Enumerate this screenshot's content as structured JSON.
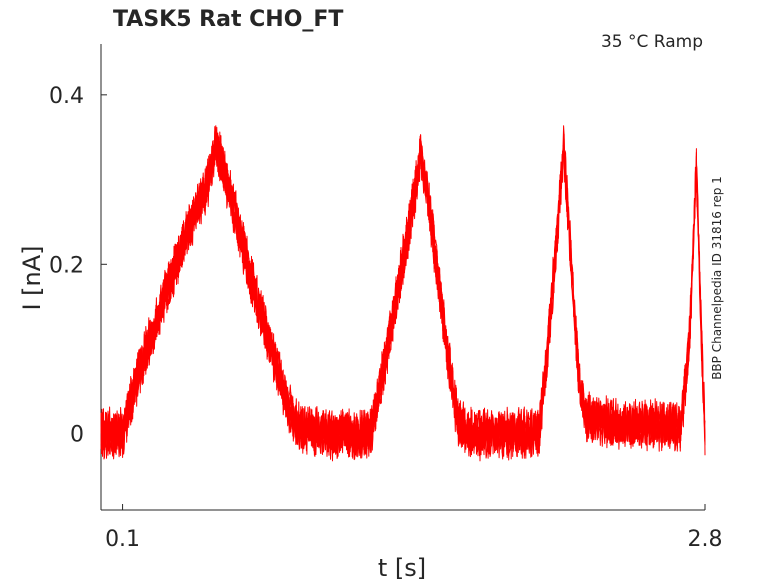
{
  "chart_data": {
    "type": "line",
    "title": "TASK5  Rat  CHO_FT",
    "subtitle": "35 °C  Ramp",
    "side_label": "BBP Channelpedia ID 31816 rep 1",
    "xlabel": "t [s]",
    "ylabel": "I [nA]",
    "xlim": [
      0.0,
      2.8
    ],
    "ylim": [
      -0.09,
      0.46
    ],
    "x_ticks": [
      {
        "value": 0.1,
        "label": "0.1"
      },
      {
        "value": 2.8,
        "label": "2.8"
      }
    ],
    "y_ticks": [
      {
        "value": 0,
        "label": "0"
      },
      {
        "value": 0.2,
        "label": "0.2"
      },
      {
        "value": 0.4,
        "label": "0.4"
      }
    ],
    "grid": false,
    "line_color": "#ff0000",
    "series": [
      {
        "values": [
          [
            0.0,
            0.0
          ],
          [
            0.1,
            0.0
          ],
          [
            0.16,
            0.06
          ],
          [
            0.25,
            0.13
          ],
          [
            0.35,
            0.2
          ],
          [
            0.45,
            0.27
          ],
          [
            0.5,
            0.3
          ],
          [
            0.53,
            0.34
          ],
          [
            0.56,
            0.32
          ],
          [
            0.62,
            0.26
          ],
          [
            0.7,
            0.18
          ],
          [
            0.8,
            0.09
          ],
          [
            0.86,
            0.04
          ],
          [
            0.9,
            0.01
          ],
          [
            1.0,
            0.0
          ],
          [
            1.15,
            0.0
          ],
          [
            1.25,
            0.0
          ],
          [
            1.32,
            0.09
          ],
          [
            1.39,
            0.19
          ],
          [
            1.44,
            0.26
          ],
          [
            1.48,
            0.33
          ],
          [
            1.51,
            0.29
          ],
          [
            1.56,
            0.19
          ],
          [
            1.61,
            0.09
          ],
          [
            1.65,
            0.02
          ],
          [
            1.7,
            0.0
          ],
          [
            1.85,
            0.0
          ],
          [
            2.03,
            0.0
          ],
          [
            2.07,
            0.1
          ],
          [
            2.11,
            0.22
          ],
          [
            2.145,
            0.34
          ],
          [
            2.18,
            0.2
          ],
          [
            2.22,
            0.05
          ],
          [
            2.25,
            0.02
          ],
          [
            2.4,
            0.01
          ],
          [
            2.69,
            0.01
          ],
          [
            2.73,
            0.12
          ],
          [
            2.76,
            0.32
          ],
          [
            2.785,
            0.1
          ],
          [
            2.8,
            0.0
          ]
        ]
      }
    ]
  }
}
